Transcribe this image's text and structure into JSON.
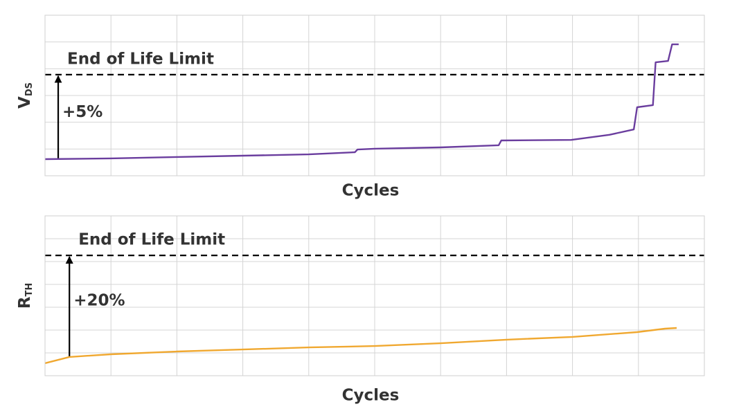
{
  "chart_data": [
    {
      "type": "line",
      "xlabel": "Cycles",
      "ylabel": {
        "text": "V",
        "subscript": "DS"
      },
      "xlim": [
        0,
        10
      ],
      "ylim": [
        0,
        6
      ],
      "xgrid": [
        0,
        1,
        2,
        3,
        4,
        5,
        6,
        7,
        8,
        9,
        10
      ],
      "ygrid": [
        0,
        1,
        2,
        3,
        4,
        5,
        6
      ],
      "grid": true,
      "color": "#6a3d9e",
      "x": [
        0,
        1,
        2,
        3,
        4,
        4.7,
        4.74,
        5,
        6,
        6.88,
        6.92,
        7.98,
        8.56,
        8.93,
        8.98,
        9.22,
        9.26,
        9.45,
        9.51,
        9.61
      ],
      "values": [
        0.62,
        0.65,
        0.7,
        0.75,
        0.8,
        0.88,
        0.98,
        1.01,
        1.06,
        1.14,
        1.32,
        1.34,
        1.53,
        1.73,
        2.56,
        2.64,
        4.24,
        4.29,
        4.91,
        4.91
      ],
      "limit": {
        "value": 3.78,
        "label": "End of Life Limit"
      },
      "arrow": {
        "x": 0.2,
        "from": 0.65,
        "label": "+5%"
      }
    },
    {
      "type": "line",
      "xlabel": "Cycles",
      "ylabel": {
        "text": "R",
        "subscript": "TH"
      },
      "xlim": [
        0,
        10
      ],
      "ylim": [
        0,
        7
      ],
      "xgrid": [
        0,
        1,
        2,
        3,
        4,
        5,
        6,
        7,
        8,
        9,
        10
      ],
      "ygrid": [
        0,
        1,
        2,
        3,
        4,
        5,
        6,
        7
      ],
      "grid": true,
      "color": "#f0a830",
      "x": [
        0,
        0.37,
        1,
        2,
        3,
        4,
        5,
        6,
        7,
        8,
        8.98,
        9.4,
        9.58
      ],
      "values": [
        0.55,
        0.82,
        0.94,
        1.06,
        1.15,
        1.24,
        1.3,
        1.42,
        1.58,
        1.7,
        1.91,
        2.06,
        2.09
      ],
      "limit": {
        "value": 5.27,
        "label": "End of Life Limit"
      },
      "arrow": {
        "x": 0.37,
        "from": 0.82,
        "label": "+20%"
      }
    }
  ]
}
